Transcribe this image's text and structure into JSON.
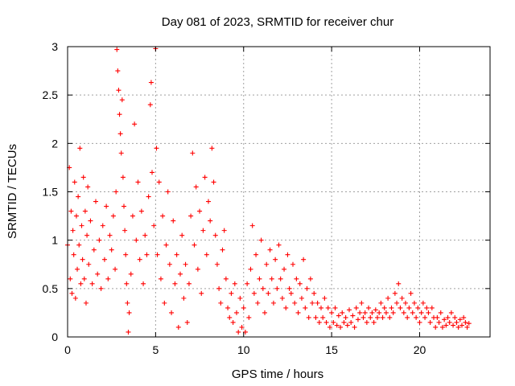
{
  "chart_data": {
    "type": "scatter",
    "title": "Day 081 of 2023, SRMTID for receiver chur",
    "xlabel": "GPS time / hours",
    "ylabel": "SRMTID / TECUs",
    "xlim": [
      0,
      24
    ],
    "ylim": [
      0,
      3
    ],
    "xticks": [
      0,
      5,
      10,
      15,
      20
    ],
    "xtick_labels": [
      "0",
      "5",
      "10",
      "15",
      "20"
    ],
    "yticks": [
      0,
      0.5,
      1,
      1.5,
      2,
      2.5,
      3
    ],
    "ytick_labels": [
      "0",
      "0.5",
      "1",
      "1.5",
      "2",
      "2.5",
      "3"
    ],
    "grid": true,
    "marker": "+",
    "series": [
      {
        "name": "SRMTID",
        "color": "#ff0000",
        "points": [
          [
            0.0,
            0.95
          ],
          [
            0.1,
            1.75
          ],
          [
            0.15,
            0.6
          ],
          [
            0.2,
            1.3
          ],
          [
            0.25,
            0.45
          ],
          [
            0.3,
            1.1
          ],
          [
            0.35,
            0.85
          ],
          [
            0.4,
            1.6
          ],
          [
            0.45,
            0.4
          ],
          [
            0.5,
            1.25
          ],
          [
            0.55,
            0.7
          ],
          [
            0.6,
            1.45
          ],
          [
            0.65,
            0.95
          ],
          [
            0.7,
            1.95
          ],
          [
            0.75,
            0.55
          ],
          [
            0.8,
            1.15
          ],
          [
            0.85,
            0.8
          ],
          [
            0.9,
            1.65
          ],
          [
            0.95,
            0.6
          ],
          [
            1.0,
            1.3
          ],
          [
            1.05,
            0.35
          ],
          [
            1.1,
            1.05
          ],
          [
            1.15,
            1.55
          ],
          [
            1.2,
            0.75
          ],
          [
            1.3,
            1.2
          ],
          [
            1.4,
            0.55
          ],
          [
            1.5,
            0.9
          ],
          [
            1.6,
            1.4
          ],
          [
            1.7,
            0.65
          ],
          [
            1.8,
            1.0
          ],
          [
            1.9,
            0.5
          ],
          [
            2.0,
            1.15
          ],
          [
            2.1,
            0.8
          ],
          [
            2.2,
            1.35
          ],
          [
            2.3,
            0.6
          ],
          [
            2.4,
            1.05
          ],
          [
            2.5,
            0.9
          ],
          [
            2.6,
            1.25
          ],
          [
            2.7,
            0.7
          ],
          [
            2.75,
            1.5
          ],
          [
            2.8,
            2.97
          ],
          [
            2.85,
            2.75
          ],
          [
            2.9,
            2.55
          ],
          [
            2.95,
            2.3
          ],
          [
            3.0,
            2.1
          ],
          [
            3.05,
            1.9
          ],
          [
            3.1,
            2.45
          ],
          [
            3.15,
            1.65
          ],
          [
            3.2,
            1.35
          ],
          [
            3.25,
            1.1
          ],
          [
            3.3,
            0.85
          ],
          [
            3.35,
            0.55
          ],
          [
            3.4,
            0.35
          ],
          [
            3.45,
            0.05
          ],
          [
            3.5,
            0.25
          ],
          [
            3.6,
            0.65
          ],
          [
            3.7,
            1.25
          ],
          [
            3.8,
            2.2
          ],
          [
            3.9,
            1.0
          ],
          [
            4.0,
            1.6
          ],
          [
            4.1,
            0.8
          ],
          [
            4.2,
            1.3
          ],
          [
            4.3,
            0.55
          ],
          [
            4.4,
            1.05
          ],
          [
            4.5,
            0.85
          ],
          [
            4.6,
            1.45
          ],
          [
            4.7,
            2.4
          ],
          [
            4.75,
            2.63
          ],
          [
            4.8,
            1.7
          ],
          [
            4.9,
            1.15
          ],
          [
            5.0,
            2.98
          ],
          [
            5.05,
            1.95
          ],
          [
            5.1,
            0.85
          ],
          [
            5.2,
            1.6
          ],
          [
            5.3,
            0.6
          ],
          [
            5.4,
            1.25
          ],
          [
            5.5,
            0.35
          ],
          [
            5.6,
            0.95
          ],
          [
            5.7,
            1.5
          ],
          [
            5.8,
            0.75
          ],
          [
            5.9,
            0.25
          ],
          [
            6.0,
            1.2
          ],
          [
            6.1,
            0.55
          ],
          [
            6.2,
            0.85
          ],
          [
            6.3,
            0.1
          ],
          [
            6.4,
            0.65
          ],
          [
            6.5,
            1.05
          ],
          [
            6.6,
            0.4
          ],
          [
            6.7,
            0.75
          ],
          [
            6.8,
            0.15
          ],
          [
            6.9,
            0.55
          ],
          [
            7.0,
            1.25
          ],
          [
            7.1,
            1.9
          ],
          [
            7.2,
            0.95
          ],
          [
            7.3,
            1.55
          ],
          [
            7.4,
            0.7
          ],
          [
            7.5,
            1.3
          ],
          [
            7.6,
            0.45
          ],
          [
            7.7,
            1.1
          ],
          [
            7.8,
            1.65
          ],
          [
            7.9,
            0.85
          ],
          [
            8.0,
            1.4
          ],
          [
            8.1,
            1.2
          ],
          [
            8.2,
            1.95
          ],
          [
            8.3,
            1.6
          ],
          [
            8.4,
            1.05
          ],
          [
            8.5,
            0.75
          ],
          [
            8.6,
            0.5
          ],
          [
            8.7,
            0.35
          ],
          [
            8.8,
            0.9
          ],
          [
            8.9,
            1.1
          ],
          [
            9.0,
            0.6
          ],
          [
            9.1,
            0.3
          ],
          [
            9.2,
            0.2
          ],
          [
            9.3,
            0.45
          ],
          [
            9.4,
            0.15
          ],
          [
            9.5,
            0.55
          ],
          [
            9.6,
            0.25
          ],
          [
            9.7,
            0.05
          ],
          [
            9.8,
            0.4
          ],
          [
            9.9,
            0.1
          ],
          [
            10.0,
            0.3
          ],
          [
            10.1,
            0.05
          ],
          [
            10.2,
            0.55
          ],
          [
            10.3,
            0.2
          ],
          [
            10.4,
            0.7
          ],
          [
            10.5,
            1.15
          ],
          [
            10.6,
            0.45
          ],
          [
            10.7,
            0.85
          ],
          [
            10.8,
            0.35
          ],
          [
            10.9,
            0.6
          ],
          [
            11.0,
            1.0
          ],
          [
            11.1,
            0.5
          ],
          [
            11.2,
            0.25
          ],
          [
            11.3,
            0.75
          ],
          [
            11.4,
            0.45
          ],
          [
            11.5,
            0.9
          ],
          [
            11.6,
            0.6
          ],
          [
            11.7,
            0.35
          ],
          [
            11.8,
            0.8
          ],
          [
            11.9,
            0.5
          ],
          [
            12.0,
            0.95
          ],
          [
            12.1,
            0.6
          ],
          [
            12.2,
            0.4
          ],
          [
            12.3,
            0.7
          ],
          [
            12.4,
            0.3
          ],
          [
            12.5,
            0.85
          ],
          [
            12.6,
            0.5
          ],
          [
            12.7,
            0.45
          ],
          [
            12.8,
            0.75
          ],
          [
            12.9,
            0.35
          ],
          [
            13.0,
            0.6
          ],
          [
            13.1,
            0.25
          ],
          [
            13.2,
            0.55
          ],
          [
            13.3,
            0.4
          ],
          [
            13.4,
            0.8
          ],
          [
            13.5,
            0.3
          ],
          [
            13.6,
            0.5
          ],
          [
            13.7,
            0.2
          ],
          [
            13.8,
            0.6
          ],
          [
            13.9,
            0.35
          ],
          [
            14.0,
            0.45
          ],
          [
            14.1,
            0.2
          ],
          [
            14.2,
            0.35
          ],
          [
            14.3,
            0.15
          ],
          [
            14.4,
            0.3
          ],
          [
            14.5,
            0.2
          ],
          [
            14.6,
            0.4
          ],
          [
            14.7,
            0.15
          ],
          [
            14.8,
            0.3
          ],
          [
            14.9,
            0.1
          ],
          [
            15.0,
            0.25
          ],
          [
            15.1,
            0.15
          ],
          [
            15.2,
            0.3
          ],
          [
            15.3,
            0.12
          ],
          [
            15.4,
            0.22
          ],
          [
            15.5,
            0.1
          ],
          [
            15.6,
            0.25
          ],
          [
            15.7,
            0.15
          ],
          [
            15.8,
            0.2
          ],
          [
            15.9,
            0.12
          ],
          [
            16.0,
            0.28
          ],
          [
            16.1,
            0.15
          ],
          [
            16.2,
            0.22
          ],
          [
            16.3,
            0.1
          ],
          [
            16.4,
            0.3
          ],
          [
            16.5,
            0.18
          ],
          [
            16.6,
            0.25
          ],
          [
            16.7,
            0.35
          ],
          [
            16.8,
            0.2
          ],
          [
            16.9,
            0.25
          ],
          [
            17.0,
            0.15
          ],
          [
            17.1,
            0.3
          ],
          [
            17.2,
            0.2
          ],
          [
            17.3,
            0.25
          ],
          [
            17.4,
            0.15
          ],
          [
            17.5,
            0.28
          ],
          [
            17.6,
            0.2
          ],
          [
            17.7,
            0.25
          ],
          [
            17.8,
            0.35
          ],
          [
            17.9,
            0.2
          ],
          [
            18.0,
            0.3
          ],
          [
            18.1,
            0.25
          ],
          [
            18.2,
            0.4
          ],
          [
            18.3,
            0.2
          ],
          [
            18.4,
            0.3
          ],
          [
            18.5,
            0.25
          ],
          [
            18.6,
            0.45
          ],
          [
            18.7,
            0.35
          ],
          [
            18.8,
            0.55
          ],
          [
            18.9,
            0.3
          ],
          [
            19.0,
            0.4
          ],
          [
            19.1,
            0.25
          ],
          [
            19.2,
            0.35
          ],
          [
            19.3,
            0.2
          ],
          [
            19.4,
            0.3
          ],
          [
            19.5,
            0.45
          ],
          [
            19.6,
            0.25
          ],
          [
            19.7,
            0.35
          ],
          [
            19.8,
            0.2
          ],
          [
            19.9,
            0.3
          ],
          [
            20.0,
            0.15
          ],
          [
            20.1,
            0.25
          ],
          [
            20.2,
            0.35
          ],
          [
            20.3,
            0.2
          ],
          [
            20.4,
            0.3
          ],
          [
            20.5,
            0.25
          ],
          [
            20.6,
            0.15
          ],
          [
            20.7,
            0.3
          ],
          [
            20.8,
            0.2
          ],
          [
            20.9,
            0.1
          ],
          [
            21.0,
            0.2
          ],
          [
            21.1,
            0.15
          ],
          [
            21.2,
            0.25
          ],
          [
            21.3,
            0.1
          ],
          [
            21.4,
            0.18
          ],
          [
            21.5,
            0.12
          ],
          [
            21.6,
            0.2
          ],
          [
            21.7,
            0.15
          ],
          [
            21.8,
            0.25
          ],
          [
            21.9,
            0.12
          ],
          [
            22.0,
            0.2
          ],
          [
            22.1,
            0.15
          ],
          [
            22.2,
            0.1
          ],
          [
            22.3,
            0.18
          ],
          [
            22.4,
            0.12
          ],
          [
            22.5,
            0.2
          ],
          [
            22.6,
            0.15
          ],
          [
            22.7,
            0.1
          ],
          [
            22.8,
            0.14
          ]
        ]
      }
    ]
  }
}
